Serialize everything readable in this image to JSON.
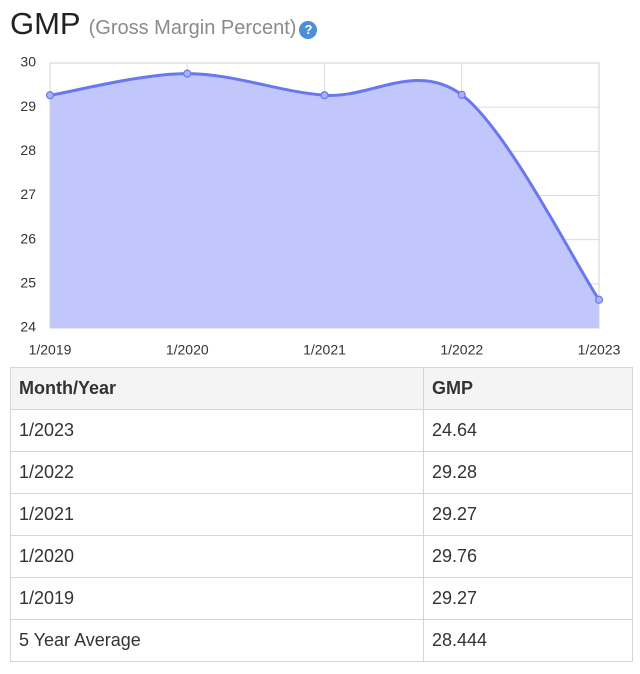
{
  "header": {
    "title": "GMP",
    "subtitle": "(Gross Margin Percent)",
    "help": "?"
  },
  "chart_data": {
    "type": "area",
    "categories": [
      "1/2019",
      "1/2020",
      "1/2021",
      "1/2022",
      "1/2023"
    ],
    "values": [
      29.27,
      29.76,
      29.27,
      29.28,
      24.64
    ],
    "color": "#6a78f0",
    "fill": "#c1c7fb",
    "ylim": [
      24,
      30
    ],
    "yticks": [
      24,
      25,
      26,
      27,
      28,
      29,
      30
    ],
    "grid": true
  },
  "table": {
    "columns": [
      "Month/Year",
      "GMP"
    ],
    "rows": [
      [
        "1/2023",
        "24.64"
      ],
      [
        "1/2022",
        "29.28"
      ],
      [
        "1/2021",
        "29.27"
      ],
      [
        "1/2020",
        "29.76"
      ],
      [
        "1/2019",
        "29.27"
      ],
      [
        "5 Year Average",
        "28.444"
      ]
    ]
  }
}
